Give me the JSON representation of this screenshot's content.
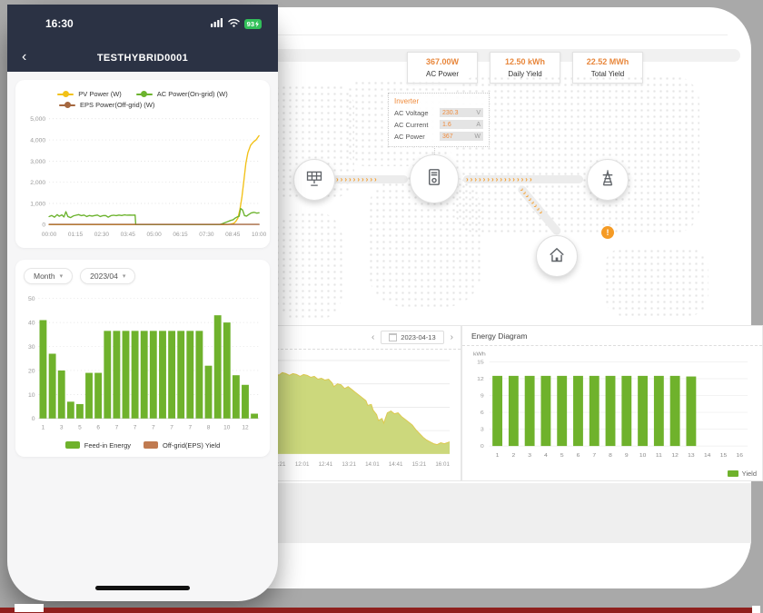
{
  "phone": {
    "status_bar": {
      "time": "16:30",
      "battery_percent": "93"
    },
    "header": {
      "back_glyph": "‹",
      "title": "TESTHYBRID0001"
    },
    "filters": {
      "period": {
        "label": "Month",
        "chevron": "▾"
      },
      "month": {
        "label": "2023/04",
        "chevron": "▾"
      }
    },
    "bar_legend": [
      {
        "label": "Feed-in Energy",
        "color": "#6fb22c"
      },
      {
        "label": "Off-grid(EPS) Yield",
        "color": "#c07a50"
      }
    ]
  },
  "desktop": {
    "stats": [
      {
        "value": "367.00W",
        "label": "AC Power"
      },
      {
        "value": "12.50 kWh",
        "label": "Daily Yield"
      },
      {
        "value": "22.52 MWh",
        "label": "Total Yield"
      }
    ],
    "inverter_panel": {
      "title": "Inverter",
      "rows": [
        {
          "label": "AC Voltage",
          "value": "230.3",
          "unit": "V"
        },
        {
          "label": "AC Current",
          "value": "1.6",
          "unit": "A"
        },
        {
          "label": "AC Power",
          "value": "367",
          "unit": "W"
        }
      ]
    },
    "flow": {
      "arrow_glyphs": {
        "t1": "››››››››››",
        "t2": "››››››››››››››››",
        "t3": "››››››››"
      },
      "alert_glyph": "!"
    },
    "daily_panel": {
      "prev_glyph": "‹",
      "date": "2023-04-13",
      "next_glyph": "›"
    },
    "energy_panel": {
      "title": "Energy Diagram",
      "legend_label": "Yield"
    }
  },
  "chart_data": [
    {
      "id": "pv_power_line",
      "type": "line",
      "x_max": 625,
      "xtick_labels": [
        "00:00",
        "01:15",
        "02:30",
        "03:45",
        "05:00",
        "06:15",
        "07:30",
        "08:45",
        "10:00"
      ],
      "ylim": [
        0,
        5000
      ],
      "yticks": [
        0,
        1000,
        2000,
        3000,
        4000,
        5000
      ],
      "series": [
        {
          "name": "PV Power (W)",
          "color": "#f2c118",
          "points": [
            [
              0,
              0
            ],
            [
              530,
              0
            ],
            [
              540,
              20
            ],
            [
              550,
              60
            ],
            [
              556,
              150
            ],
            [
              562,
              300
            ],
            [
              568,
              700
            ],
            [
              574,
              1300
            ],
            [
              580,
              2100
            ],
            [
              586,
              2900
            ],
            [
              592,
              3400
            ],
            [
              600,
              3750
            ],
            [
              608,
              3900
            ],
            [
              616,
              4000
            ],
            [
              625,
              4200
            ]
          ]
        },
        {
          "name": "AC Power(On-grid) (W)",
          "color": "#6cb32e",
          "points": [
            [
              0,
              380
            ],
            [
              8,
              430
            ],
            [
              16,
              350
            ],
            [
              24,
              470
            ],
            [
              30,
              390
            ],
            [
              38,
              460
            ],
            [
              44,
              360
            ],
            [
              50,
              610
            ],
            [
              56,
              380
            ],
            [
              64,
              330
            ],
            [
              72,
              410
            ],
            [
              80,
              440
            ],
            [
              88,
              470
            ],
            [
              96,
              420
            ],
            [
              104,
              450
            ],
            [
              112,
              380
            ],
            [
              120,
              430
            ],
            [
              128,
              400
            ],
            [
              136,
              430
            ],
            [
              144,
              450
            ],
            [
              152,
              380
            ],
            [
              160,
              420
            ],
            [
              168,
              430
            ],
            [
              176,
              350
            ],
            [
              184,
              420
            ],
            [
              192,
              440
            ],
            [
              200,
              420
            ],
            [
              208,
              450
            ],
            [
              216,
              430
            ],
            [
              224,
              460
            ],
            [
              232,
              440
            ],
            [
              240,
              450
            ],
            [
              248,
              440
            ],
            [
              256,
              450
            ],
            [
              258,
              0
            ],
            [
              508,
              0
            ],
            [
              516,
              40
            ],
            [
              524,
              90
            ],
            [
              532,
              140
            ],
            [
              540,
              190
            ],
            [
              548,
              230
            ],
            [
              554,
              310
            ],
            [
              560,
              360
            ],
            [
              566,
              390
            ],
            [
              570,
              760
            ],
            [
              576,
              690
            ],
            [
              582,
              420
            ],
            [
              588,
              400
            ],
            [
              594,
              470
            ],
            [
              602,
              550
            ],
            [
              610,
              580
            ],
            [
              618,
              540
            ],
            [
              625,
              560
            ]
          ]
        },
        {
          "name": "EPS Power(Off-grid) (W)",
          "color": "#a5673f",
          "points": [
            [
              0,
              10
            ],
            [
              625,
              10
            ]
          ]
        }
      ]
    },
    {
      "id": "monthly_energy",
      "type": "bar",
      "ylim": [
        0,
        50
      ],
      "yticks": [
        0,
        10,
        20,
        30,
        40,
        50
      ],
      "values": [
        41,
        27,
        20,
        7,
        6,
        19,
        19,
        36.5,
        36.5,
        36.5,
        36.5,
        36.5,
        36.5,
        36.5,
        36.5,
        36.5,
        36.5,
        36.5,
        22,
        43,
        40,
        18,
        14,
        2
      ],
      "xtick_labels": [
        "1",
        "3",
        "5",
        "6",
        "7",
        "7",
        "7",
        "7",
        "7",
        "8",
        "10",
        "12"
      ],
      "bar_color": "#6fb22c"
    },
    {
      "id": "daily_power_area",
      "type": "area",
      "fill": "#ccd87c",
      "line": "#ddc94f",
      "xtick_labels": [
        "11:21",
        "12:01",
        "12:41",
        "13:21",
        "14:01",
        "14:41",
        "15:21",
        "16:01"
      ],
      "points_pct": [
        [
          0,
          85
        ],
        [
          2,
          88
        ],
        [
          4,
          84
        ],
        [
          6,
          87
        ],
        [
          8,
          86
        ],
        [
          10,
          84
        ],
        [
          12,
          86
        ],
        [
          14,
          85
        ],
        [
          16,
          83
        ],
        [
          18,
          85
        ],
        [
          20,
          84
        ],
        [
          22,
          82
        ],
        [
          24,
          83
        ],
        [
          26,
          80
        ],
        [
          28,
          81
        ],
        [
          30,
          79
        ],
        [
          32,
          80
        ],
        [
          34,
          76
        ],
        [
          35,
          72
        ],
        [
          37,
          75
        ],
        [
          39,
          74
        ],
        [
          41,
          70
        ],
        [
          43,
          72
        ],
        [
          45,
          69
        ],
        [
          47,
          66
        ],
        [
          49,
          63
        ],
        [
          51,
          60
        ],
        [
          53,
          57
        ],
        [
          54,
          52
        ],
        [
          56,
          53
        ],
        [
          57,
          47
        ],
        [
          59,
          42
        ],
        [
          60,
          36
        ],
        [
          62,
          38
        ],
        [
          63,
          33
        ],
        [
          65,
          44
        ],
        [
          67,
          46
        ],
        [
          69,
          43
        ],
        [
          71,
          44
        ],
        [
          73,
          40
        ],
        [
          75,
          37
        ],
        [
          77,
          34
        ],
        [
          79,
          31
        ],
        [
          81,
          26
        ],
        [
          83,
          22
        ],
        [
          85,
          18
        ],
        [
          87,
          15
        ],
        [
          89,
          13
        ],
        [
          91,
          11
        ],
        [
          93,
          10
        ],
        [
          95,
          12
        ],
        [
          97,
          11
        ],
        [
          100,
          13
        ]
      ]
    },
    {
      "id": "energy_diagram",
      "type": "bar",
      "unit_label": "kWh",
      "ylim": [
        0,
        15
      ],
      "yticks": [
        0,
        3,
        6,
        9,
        12,
        15
      ],
      "categories": [
        "1",
        "2",
        "3",
        "4",
        "5",
        "6",
        "7",
        "8",
        "9",
        "10",
        "11",
        "12",
        "13",
        "14",
        "15",
        "16"
      ],
      "values": [
        12.5,
        12.5,
        12.5,
        12.5,
        12.5,
        12.5,
        12.5,
        12.5,
        12.5,
        12.5,
        12.5,
        12.5,
        12.4,
        0,
        0,
        0
      ],
      "bar_color": "#6fb22c",
      "legend_label": "Yield"
    }
  ]
}
